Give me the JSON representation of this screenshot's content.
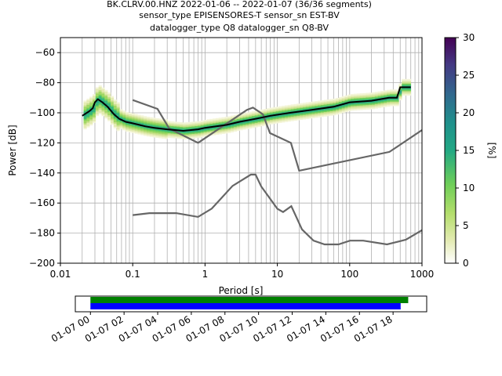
{
  "header": {
    "line1": "BK.CLRV.00.HNZ   2022-01-06 -- 2022-01-07  (36/36 segments)",
    "line2": "sensor_type EPISENSORES-T sensor_sn EST-BV",
    "line3": "datalogger_type Q8 datalogger_sn Q8-BV"
  },
  "chart_data": [
    {
      "type": "heatmap",
      "title": "",
      "xlabel": "Period [s]",
      "ylabel": "Power [dB]",
      "xscale": "log",
      "xlim": [
        0.01,
        1000
      ],
      "ylim": [
        -200,
        -50
      ],
      "x_ticks": [
        {
          "v": 0.01,
          "label": "0.01"
        },
        {
          "v": 0.1,
          "label": "0.1"
        },
        {
          "v": 1,
          "label": "1"
        },
        {
          "v": 10,
          "label": "10"
        },
        {
          "v": 100,
          "label": "100"
        },
        {
          "v": 1000,
          "label": "1000"
        }
      ],
      "y_ticks": [
        {
          "v": -60,
          "label": "−60"
        },
        {
          "v": -80,
          "label": "−80"
        },
        {
          "v": -100,
          "label": "−100"
        },
        {
          "v": -120,
          "label": "−120"
        },
        {
          "v": -140,
          "label": "−140"
        },
        {
          "v": -160,
          "label": "−160"
        },
        {
          "v": -180,
          "label": "−180"
        },
        {
          "v": -200,
          "label": "−200"
        }
      ],
      "grid": true,
      "colormap": "viridis_r",
      "colorbar": {
        "label": "[%]",
        "range": [
          0,
          30
        ],
        "ticks": [
          {
            "v": 0,
            "label": "0"
          },
          {
            "v": 5,
            "label": "5"
          },
          {
            "v": 10,
            "label": "10"
          },
          {
            "v": 15,
            "label": "15"
          },
          {
            "v": 20,
            "label": "20"
          },
          {
            "v": 25,
            "label": "25"
          },
          {
            "v": 30,
            "label": "30"
          }
        ]
      },
      "mode_curve": {
        "color": "#000000",
        "points": [
          [
            0.02,
            -102
          ],
          [
            0.025,
            -99
          ],
          [
            0.028,
            -97
          ],
          [
            0.03,
            -93
          ],
          [
            0.033,
            -91
          ],
          [
            0.038,
            -93
          ],
          [
            0.045,
            -96
          ],
          [
            0.055,
            -101
          ],
          [
            0.065,
            -104
          ],
          [
            0.08,
            -106
          ],
          [
            0.1,
            -107
          ],
          [
            0.15,
            -109
          ],
          [
            0.2,
            -110
          ],
          [
            0.3,
            -111
          ],
          [
            0.5,
            -112
          ],
          [
            0.8,
            -111
          ],
          [
            1,
            -110
          ],
          [
            2,
            -108
          ],
          [
            3,
            -106
          ],
          [
            5,
            -104
          ],
          [
            8,
            -102
          ],
          [
            15,
            -100
          ],
          [
            30,
            -98
          ],
          [
            60,
            -96
          ],
          [
            100,
            -93
          ],
          [
            200,
            -92
          ],
          [
            350,
            -90
          ],
          [
            450,
            -90
          ],
          [
            500,
            -83
          ],
          [
            700,
            -83
          ]
        ]
      },
      "noise_models": {
        "color": "#666666",
        "upper": [
          [
            0.1,
            -91.5
          ],
          [
            0.22,
            -97.4
          ],
          [
            0.32,
            -110.5
          ],
          [
            0.8,
            -120
          ],
          [
            3.8,
            -98
          ],
          [
            4.6,
            -96.5
          ],
          [
            6.3,
            -101
          ],
          [
            7.9,
            -113.5
          ],
          [
            15.4,
            -120
          ],
          [
            20,
            -138.5
          ],
          [
            354.8,
            -126
          ],
          [
            1000,
            -111.5
          ]
        ],
        "lower": [
          [
            0.1,
            -168
          ],
          [
            0.17,
            -166.7
          ],
          [
            0.4,
            -166.7
          ],
          [
            0.8,
            -169.2
          ],
          [
            1.24,
            -163.7
          ],
          [
            2.4,
            -148.6
          ],
          [
            4.3,
            -141.1
          ],
          [
            5,
            -141.1
          ],
          [
            6,
            -149
          ],
          [
            10,
            -163.8
          ],
          [
            12,
            -166
          ],
          [
            15.6,
            -162.1
          ],
          [
            21.9,
            -177.5
          ],
          [
            31.6,
            -185
          ],
          [
            45,
            -187.5
          ],
          [
            70,
            -187.5
          ],
          [
            101,
            -185
          ],
          [
            154,
            -185
          ],
          [
            328,
            -187.5
          ],
          [
            600,
            -184.4
          ],
          [
            1000,
            -178
          ]
        ]
      }
    },
    {
      "type": "bar",
      "title": "",
      "xlabel": "",
      "ylabel": "",
      "x_labels": [
        "01-07 00",
        "01-07 02",
        "01-07 04",
        "01-07 06",
        "01-07 08",
        "01-07 10",
        "01-07 12",
        "01-07 14",
        "01-07 16",
        "01-07 18"
      ],
      "xlim_hours": [
        -0.9,
        20.0
      ],
      "series": [
        {
          "color": "#008000",
          "start_hour": 0,
          "end_hour": 18.9
        },
        {
          "color": "#0000ff",
          "start_hour": 0,
          "end_hour": 18.45
        }
      ]
    }
  ]
}
